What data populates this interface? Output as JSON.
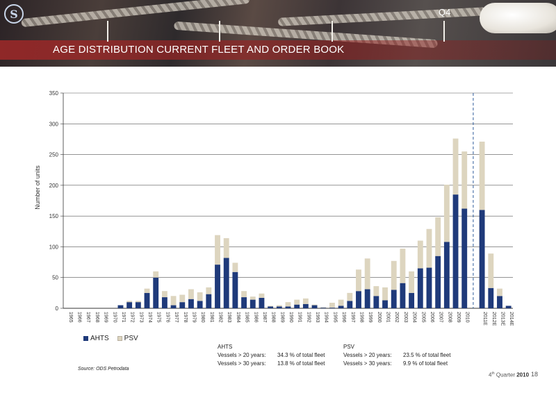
{
  "header": {
    "quarter_label": "Q4",
    "title": "AGE DISTRIBUTION CURRENT FLEET AND ORDER BOOK"
  },
  "colors": {
    "ahts": "#1f3a7a",
    "psv": "#ddd5bf",
    "grid": "#555555",
    "divider": "#2f5b9c",
    "banner_red": "#a02828"
  },
  "chart_data": {
    "type": "bar",
    "stacked": true,
    "title": "",
    "xlabel": "",
    "ylabel": "Number of units",
    "ylim": [
      0,
      350
    ],
    "yticks": [
      0,
      50,
      100,
      150,
      200,
      250,
      300,
      350
    ],
    "grid": true,
    "legend_position": "bottom-left",
    "categories": [
      "1965",
      "1966",
      "1967",
      "1968",
      "1969",
      "1970",
      "1971",
      "1972",
      "1973",
      "1974",
      "1975",
      "1976",
      "1977",
      "1978",
      "1979",
      "1980",
      "1981",
      "1982",
      "1983",
      "1984",
      "1985",
      "1986",
      "1987",
      "1988",
      "1989",
      "1990",
      "1991",
      "1992",
      "1993",
      "1994",
      "1995",
      "1996",
      "1997",
      "1998",
      "1999",
      "2000",
      "2001",
      "2002",
      "2003",
      "2004",
      "2005",
      "2006",
      "2007",
      "2008",
      "2009",
      "2010",
      "",
      "2011E",
      "2012E",
      "2013E",
      "2014E"
    ],
    "series": [
      {
        "name": "AHTS",
        "color": "#1f3a7a",
        "values": [
          0,
          0,
          0,
          0,
          0,
          0,
          5,
          10,
          10,
          25,
          50,
          18,
          5,
          10,
          15,
          12,
          23,
          71,
          82,
          59,
          18,
          14,
          17,
          3,
          3,
          3,
          6,
          7,
          5,
          1,
          1,
          4,
          12,
          28,
          31,
          20,
          13,
          30,
          41,
          25,
          65,
          66,
          85,
          108,
          185,
          162,
          0,
          160,
          33,
          20,
          4
        ]
      },
      {
        "name": "PSV",
        "color": "#ddd5bf",
        "values": [
          0,
          0,
          0,
          0,
          0,
          0,
          0,
          2,
          2,
          7,
          10,
          10,
          15,
          12,
          16,
          14,
          11,
          48,
          32,
          15,
          10,
          5,
          7,
          1,
          2,
          7,
          8,
          9,
          1,
          1,
          8,
          10,
          13,
          35,
          50,
          16,
          21,
          47,
          56,
          35,
          45,
          63,
          63,
          93,
          91,
          93,
          0,
          111,
          56,
          12,
          0
        ]
      }
    ]
  },
  "legend": {
    "ahts": "AHTS",
    "psv": "PSV"
  },
  "stats": {
    "ahts": {
      "heading": "AHTS",
      "rows": [
        {
          "label": "Vessels > 20 years:",
          "value": "34.3 % of total fleet"
        },
        {
          "label": "Vessels > 30 years:",
          "value": "13.8 % of total fleet"
        }
      ]
    },
    "psv": {
      "heading": "PSV",
      "rows": [
        {
          "label": "Vessels > 20 years:",
          "value": "23.5 % of total fleet"
        },
        {
          "label": "Vessels > 30 years:",
          "value": "9.9 % of total fleet"
        }
      ]
    }
  },
  "source": "Source:  ODS Petrodata",
  "footer": {
    "quarter_prefix": "4",
    "quarter_suffix": "th",
    "quarter_word": "Quarter",
    "year": "2010",
    "page": "18"
  }
}
